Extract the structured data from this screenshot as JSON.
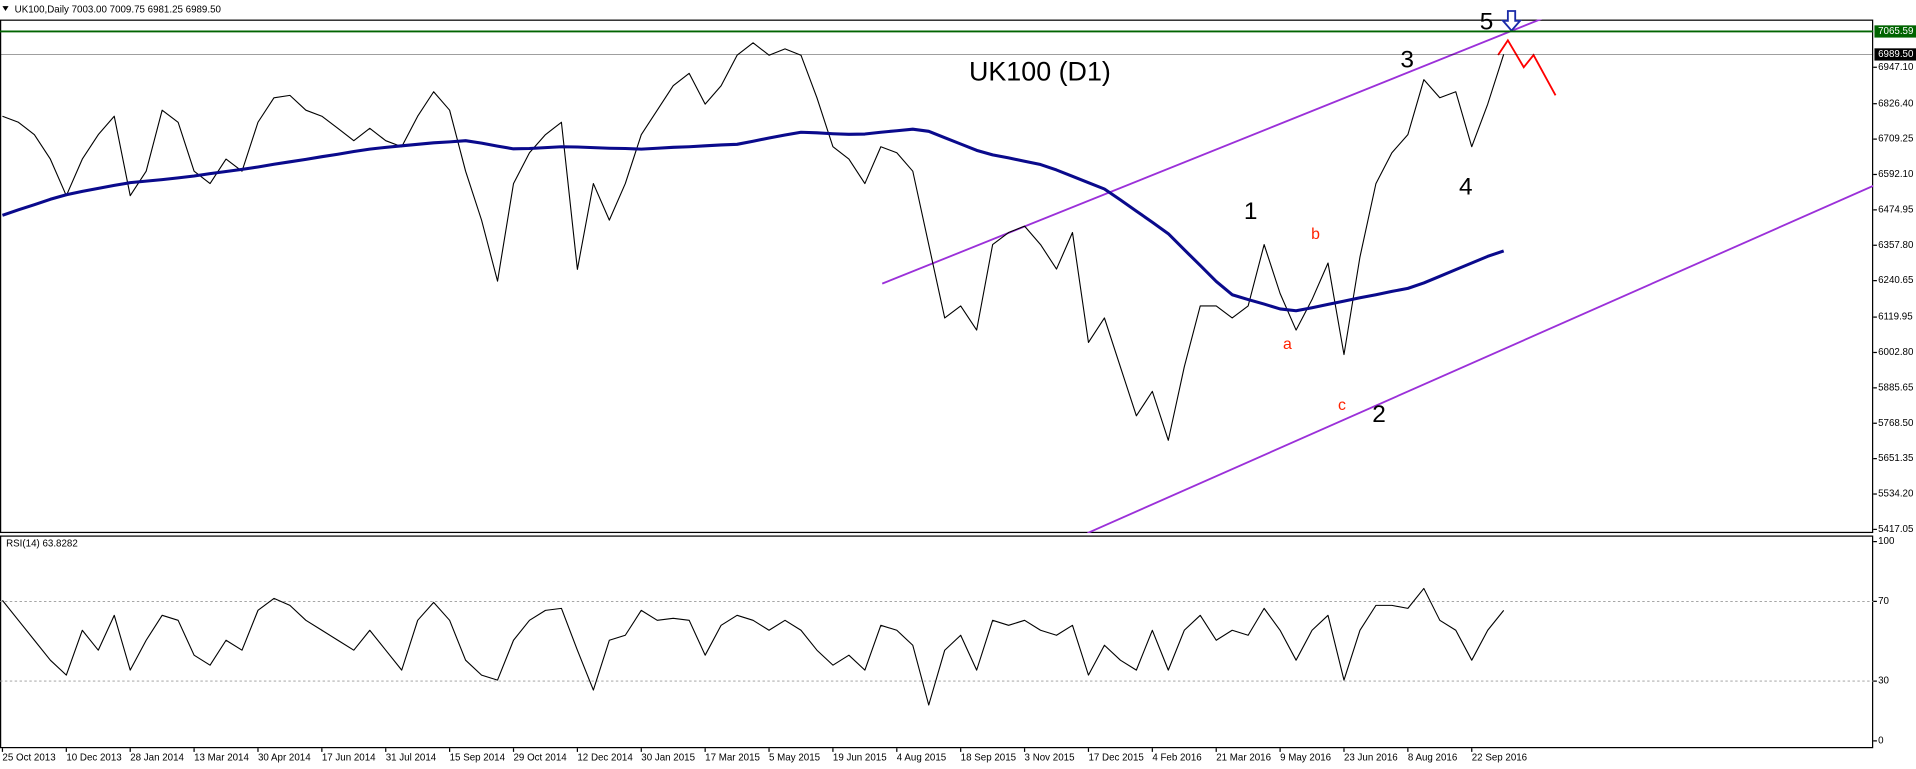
{
  "chart_data": {
    "type": "line",
    "title": "UK100,Daily  7003.00 7009.75 6981.25 6989.50",
    "annotations": [
      "UK100 (D1)",
      "1",
      "2",
      "3",
      "4",
      "5",
      "a",
      "b",
      "c"
    ],
    "categories": [
      "25 Oct 2013",
      null,
      null,
      null,
      "10 Dec 2013",
      null,
      null,
      null,
      "28 Jan 2014",
      null,
      null,
      null,
      "13 Mar 2014",
      null,
      null,
      null,
      "30 Apr 2014",
      null,
      null,
      null,
      "17 Jun 2014",
      null,
      null,
      null,
      "31 Jul 2014",
      null,
      null,
      null,
      "15 Sep 2014",
      null,
      null,
      null,
      "29 Oct 2014",
      null,
      null,
      null,
      "12 Dec 2014",
      null,
      null,
      null,
      "30 Jan 2015",
      null,
      null,
      null,
      "17 Mar 2015",
      null,
      null,
      null,
      "5 May 2015",
      null,
      null,
      null,
      "19 Jun 2015",
      null,
      null,
      null,
      "4 Aug 2015",
      null,
      null,
      null,
      "18 Sep 2015",
      null,
      null,
      null,
      "3 Nov 2015",
      null,
      null,
      null,
      "17 Dec 2015",
      null,
      null,
      null,
      "4 Feb 2016",
      null,
      null,
      null,
      "21 Mar 2016",
      null,
      null,
      null,
      "9 May 2016",
      null,
      null,
      null,
      "23 Jun 2016",
      null,
      null,
      null,
      "8 Aug 2016",
      null,
      null,
      null,
      "22 Sep 2016",
      null,
      null
    ],
    "series": [
      {
        "color": "#000000",
        "values": [
          6785,
          6765,
          6724,
          6643,
          6522,
          6643,
          6724,
          6785,
          6522,
          6603,
          6805,
          6765,
          6603,
          6562,
          6643,
          6603,
          6765,
          6846,
          6854,
          6805,
          6785,
          6745,
          6704,
          6745,
          6704,
          6684,
          6785,
          6866,
          6805,
          6603,
          6441,
          6239,
          6562,
          6664,
          6724,
          6765,
          6278,
          6562,
          6441,
          6562,
          6724,
          6805,
          6886,
          6927,
          6825,
          6886,
          6987,
          7028,
          6987,
          7008,
          6987,
          6846,
          6684,
          6643,
          6562,
          6684,
          6664,
          6603,
          6360,
          6117,
          6157,
          6077,
          6360,
          6400,
          6421,
          6360,
          6279,
          6400,
          6036,
          6117,
          5955,
          5793,
          5874,
          5712,
          5955,
          6157,
          6157,
          6117,
          6157,
          6360,
          6198,
          6077,
          6178,
          6299,
          5996,
          6319,
          6562,
          6664,
          6724,
          6906,
          6846,
          6866,
          6684,
          6825,
          6990
        ]
      },
      {
        "color": "#0a0a8c",
        "values": [
          6457,
          6475,
          6492,
          6510,
          6525,
          6536,
          6546,
          6556,
          6565,
          6570,
          6575,
          6581,
          6587,
          6595,
          6602,
          6609,
          6617,
          6626,
          6634,
          6642,
          6651,
          6659,
          6668,
          6676,
          6682,
          6687,
          6692,
          6697,
          6700,
          6704,
          6696,
          6686,
          6677,
          6678,
          6681,
          6684,
          6683,
          6681,
          6679,
          6678,
          6676,
          6679,
          6682,
          6684,
          6687,
          6690,
          6692,
          6702,
          6713,
          6723,
          6732,
          6730,
          6727,
          6725,
          6726,
          6732,
          6737,
          6742,
          6735,
          6714,
          6693,
          6672,
          6657,
          6647,
          6636,
          6625,
          6607,
          6586,
          6565,
          6544,
          6508,
          6471,
          6434,
          6396,
          6343,
          6291,
          6238,
          6194,
          6178,
          6163,
          6147,
          6141,
          6151,
          6162,
          6173,
          6184,
          6194,
          6205,
          6215,
          6233,
          6255,
          6277,
          6299,
          6321,
          6339
        ]
      },
      {
        "name": "RSI(14) 63.8282",
        "color": "#000000",
        "axis": "y2",
        "values": [
          70.5,
          60.5,
          50.5,
          40.5,
          33,
          55.5,
          45.5,
          63,
          35.5,
          50.5,
          63,
          60.5,
          43,
          38,
          50.5,
          45.5,
          65.5,
          71.5,
          68,
          60.5,
          55.5,
          50.5,
          45.5,
          55.5,
          45.5,
          35.5,
          60.5,
          69.5,
          60.5,
          40.5,
          33,
          30.5,
          50.5,
          60.5,
          65.5,
          66.5,
          45.5,
          25.5,
          50.5,
          53,
          65.5,
          60.5,
          61.5,
          60.5,
          43,
          58,
          63,
          60.5,
          55.5,
          60.5,
          55.5,
          45.5,
          38,
          43,
          35.5,
          58,
          55.5,
          48,
          18,
          45.5,
          53,
          35.5,
          60.5,
          58,
          60.5,
          55.5,
          53,
          58,
          33,
          48,
          40.5,
          35.5,
          55.5,
          35.5,
          55.5,
          63,
          50.5,
          55.5,
          53,
          66.5,
          55.5,
          40.5,
          55.5,
          63,
          30.5,
          55.5,
          68,
          68,
          66.5,
          76.5,
          60.5,
          55.5,
          40.5,
          55.5,
          65.5
        ]
      }
    ],
    "ylim": [
      5405,
      7105
    ],
    "yticks": [
      {
        "value": 6947.1,
        "label": "6947.10"
      },
      {
        "value": 6826.4,
        "label": "6826.40"
      },
      6709.25,
      {
        "value": 6592.1,
        "label": "6592.10"
      },
      6474.95,
      {
        "value": 6357.8,
        "label": "6357.80"
      },
      6240.65,
      6119.95,
      {
        "value": 6002.8,
        "label": "6002.80"
      },
      5885.65,
      {
        "value": 5768.5,
        "label": "5768.50"
      },
      5651.35,
      {
        "value": 5534.2,
        "label": "5534.20"
      },
      5417.05
    ],
    "price_levels": [
      {
        "value": 7065.59,
        "color": "#006400"
      },
      {
        "value": 6989.5,
        "label": "6989.50",
        "color": "#000000"
      }
    ],
    "y2lim": [
      0,
      100
    ],
    "y2ticks": [
      100,
      70,
      30,
      0
    ],
    "y2_levels_dashed": [
      70,
      30
    ]
  }
}
